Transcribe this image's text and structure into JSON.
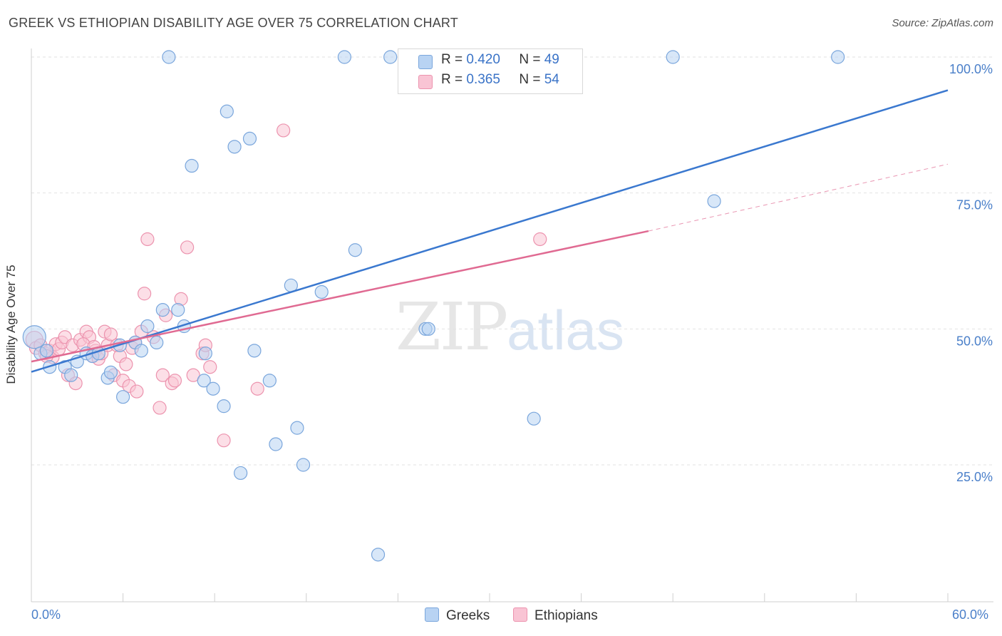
{
  "title": "GREEK VS ETHIOPIAN DISABILITY AGE OVER 75 CORRELATION CHART",
  "source": "Source: ZipAtlas.com",
  "watermark": {
    "zip": "ZIP",
    "atlas": "atlas"
  },
  "colors": {
    "greek_fill": "#b8d3f3",
    "greek_stroke": "#7aa6dc",
    "greek_line": "#3a78cf",
    "eth_fill": "#f9c4d4",
    "eth_stroke": "#ec93ae",
    "eth_line": "#e06a92",
    "tick_label": "#4a7fc9",
    "grid": "#e2e2e2"
  },
  "legend_top": {
    "greek": {
      "r_label": "R =",
      "r_value": "0.420",
      "n_label": "N =",
      "n_value": "49"
    },
    "eth": {
      "r_label": "R =",
      "r_value": "0.365",
      "n_label": "N =",
      "n_value": "54"
    }
  },
  "chart_data": {
    "type": "scatter",
    "title": "GREEK VS ETHIOPIAN DISABILITY AGE OVER 75 CORRELATION CHART",
    "xlabel": "",
    "ylabel": "Disability Age Over 75",
    "xlim": [
      0,
      60
    ],
    "ylim": [
      0,
      105
    ],
    "x_tick_labels": {
      "min": "0.0%",
      "max": "60.0%"
    },
    "y_ticks": [
      {
        "value": 25,
        "label": "25.0%"
      },
      {
        "value": 50,
        "label": "50.0%"
      },
      {
        "value": 75,
        "label": "75.0%"
      },
      {
        "value": 100,
        "label": "100.0%"
      }
    ],
    "grid": true,
    "legend_placement": "bottom",
    "series": [
      {
        "name": "Greeks",
        "r": 0.42,
        "n": 49,
        "trend": {
          "x1": 0,
          "y1": 42.1,
          "x2": 60,
          "y2": 93.9
        },
        "points": [
          [
            0.2,
            48.5,
            16
          ],
          [
            0.6,
            45.5,
            10
          ],
          [
            1.0,
            46.0,
            10
          ],
          [
            1.2,
            43.0,
            10
          ],
          [
            2.2,
            43.0,
            10
          ],
          [
            2.6,
            41.5,
            10
          ],
          [
            3.0,
            44.0,
            10
          ],
          [
            3.6,
            45.5,
            10
          ],
          [
            4.0,
            45.0,
            10
          ],
          [
            4.4,
            45.5,
            10
          ],
          [
            5.0,
            41.0,
            10
          ],
          [
            5.2,
            42.0,
            10
          ],
          [
            5.8,
            47.0,
            10
          ],
          [
            6.0,
            37.5,
            10
          ],
          [
            6.8,
            47.5,
            10
          ],
          [
            7.2,
            46.0,
            10
          ],
          [
            7.6,
            50.5,
            10
          ],
          [
            8.2,
            47.5,
            10
          ],
          [
            8.6,
            53.5,
            10
          ],
          [
            9.0,
            100.0,
            10
          ],
          [
            9.6,
            53.5,
            10
          ],
          [
            10.0,
            50.5,
            10
          ],
          [
            10.5,
            80.0,
            10
          ],
          [
            11.4,
            45.5,
            10
          ],
          [
            11.3,
            40.5,
            10
          ],
          [
            11.9,
            39.0,
            10
          ],
          [
            12.6,
            35.8,
            10
          ],
          [
            12.8,
            90.0,
            10
          ],
          [
            13.3,
            83.5,
            10
          ],
          [
            13.7,
            23.5,
            10
          ],
          [
            14.3,
            85.0,
            10
          ],
          [
            14.6,
            46.0,
            10
          ],
          [
            15.6,
            40.5,
            10
          ],
          [
            16.0,
            28.8,
            10
          ],
          [
            17.0,
            58.0,
            10
          ],
          [
            17.4,
            31.8,
            10
          ],
          [
            17.8,
            25.0,
            10
          ],
          [
            19.0,
            56.8,
            10
          ],
          [
            20.5,
            100.0,
            10
          ],
          [
            21.2,
            64.5,
            10
          ],
          [
            22.7,
            8.5,
            10
          ],
          [
            23.5,
            100.0,
            10
          ],
          [
            24.7,
            100.0,
            10
          ],
          [
            25.8,
            50.0,
            10
          ],
          [
            26.0,
            50.0,
            10
          ],
          [
            32.9,
            33.5,
            10
          ],
          [
            42.0,
            100.0,
            10
          ],
          [
            44.7,
            73.5,
            10
          ],
          [
            52.8,
            100.0,
            10
          ]
        ]
      },
      {
        "name": "Ethiopians",
        "r": 0.365,
        "n": 54,
        "trend": {
          "x1": 0,
          "y1": 44.0,
          "x2": 40.4,
          "y2": 68.0
        },
        "trend_ext": {
          "x1": 40.4,
          "y1": 68.0,
          "x2": 60,
          "y2": 80.3
        },
        "points": [
          [
            0.2,
            48.0,
            12
          ],
          [
            0.3,
            46.5,
            10
          ],
          [
            0.6,
            47.0,
            10
          ],
          [
            0.9,
            45.5,
            10
          ],
          [
            1.2,
            46.0,
            10
          ],
          [
            1.4,
            44.8,
            10
          ],
          [
            1.6,
            47.2,
            10
          ],
          [
            1.8,
            46.3,
            10
          ],
          [
            2.0,
            47.5,
            10
          ],
          [
            2.2,
            48.5,
            10
          ],
          [
            2.4,
            41.5,
            10
          ],
          [
            2.7,
            47.0,
            10
          ],
          [
            2.9,
            40.0,
            10
          ],
          [
            3.2,
            48.0,
            10
          ],
          [
            3.6,
            49.5,
            10
          ],
          [
            3.8,
            48.5,
            10
          ],
          [
            4.0,
            45.0,
            10
          ],
          [
            4.2,
            46.0,
            10
          ],
          [
            4.4,
            44.5,
            10
          ],
          [
            4.6,
            45.5,
            10
          ],
          [
            4.8,
            49.5,
            10
          ],
          [
            5.0,
            47.0,
            10
          ],
          [
            5.2,
            49.0,
            10
          ],
          [
            5.4,
            41.5,
            10
          ],
          [
            5.6,
            47.0,
            10
          ],
          [
            5.8,
            45.0,
            10
          ],
          [
            6.0,
            40.5,
            10
          ],
          [
            6.2,
            43.5,
            10
          ],
          [
            6.4,
            39.5,
            10
          ],
          [
            6.6,
            46.5,
            10
          ],
          [
            6.9,
            38.5,
            10
          ],
          [
            7.2,
            49.5,
            10
          ],
          [
            7.4,
            56.5,
            10
          ],
          [
            7.6,
            66.5,
            10
          ],
          [
            8.0,
            48.5,
            10
          ],
          [
            8.4,
            35.5,
            10
          ],
          [
            8.6,
            41.5,
            10
          ],
          [
            8.8,
            52.5,
            10
          ],
          [
            9.2,
            40.0,
            10
          ],
          [
            9.4,
            40.5,
            10
          ],
          [
            9.8,
            55.5,
            10
          ],
          [
            10.2,
            65.0,
            10
          ],
          [
            10.6,
            41.5,
            10
          ],
          [
            11.2,
            45.5,
            10
          ],
          [
            11.4,
            47.0,
            10
          ],
          [
            11.7,
            43.0,
            10
          ],
          [
            12.6,
            29.5,
            10
          ],
          [
            14.8,
            39.0,
            10
          ],
          [
            16.5,
            86.5,
            10
          ],
          [
            33.3,
            66.5,
            10
          ],
          [
            3.4,
            47.2,
            10
          ],
          [
            1.0,
            45.0,
            10
          ],
          [
            6.8,
            47.5,
            10
          ],
          [
            4.1,
            46.7,
            10
          ]
        ]
      }
    ]
  },
  "legend_bottom": [
    {
      "label": "Greeks"
    },
    {
      "label": "Ethiopians"
    }
  ]
}
